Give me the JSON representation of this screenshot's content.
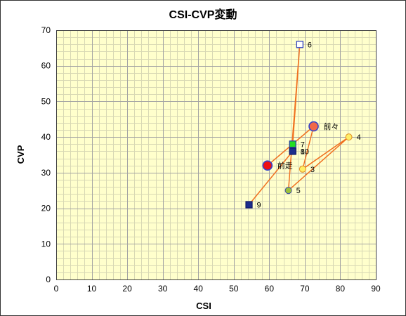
{
  "chart_data": {
    "type": "scatter",
    "connected": true,
    "title": "CSI-CVP変動",
    "xlabel": "CSI",
    "ylabel": "CVP",
    "xlim": [
      0,
      90
    ],
    "ylim": [
      0,
      70
    ],
    "xticks": [
      0,
      10,
      20,
      30,
      40,
      50,
      60,
      70,
      80,
      90
    ],
    "yticks": [
      0,
      10,
      20,
      30,
      40,
      50,
      60,
      70
    ],
    "grid": true,
    "minor_grid": true,
    "colors": {
      "plot_background": "#ffffcc",
      "major_gridline": "#a4a4a4",
      "minor_gridline": "#d8d8b4",
      "line": "#f07020"
    },
    "points": [
      {
        "label": "前走",
        "x": 59.5,
        "y": 32,
        "marker": "circle-large",
        "fill": "#ee1111",
        "stroke": "#3344cc"
      },
      {
        "label": "前々",
        "x": 72.5,
        "y": 43,
        "marker": "circle-large",
        "fill": "#f06848",
        "stroke": "#3344cc"
      },
      {
        "label": "3",
        "x": 69.4,
        "y": 31,
        "marker": "circle",
        "fill": "#ffee66",
        "stroke": "#e08a20"
      },
      {
        "label": "4",
        "x": 82.4,
        "y": 40,
        "marker": "circle",
        "fill": "#ffee66",
        "stroke": "#e08a20"
      },
      {
        "label": "5",
        "x": 65.4,
        "y": 25,
        "marker": "circle",
        "fill": "#9cc23a",
        "stroke": "#3a4aa0"
      },
      {
        "label": "6",
        "x": 68.6,
        "y": 66,
        "marker": "square",
        "fill": "#ffffff",
        "stroke": "#2233bb"
      },
      {
        "label": "7",
        "x": 66.6,
        "y": 38,
        "marker": "square",
        "fill": "#22dd22",
        "stroke": "#2233aa"
      },
      {
        "label": "8",
        "x": 66.6,
        "y": 36,
        "marker": "square",
        "fill": "#1c2c8c",
        "stroke": "#10186a"
      },
      {
        "label": "9",
        "x": 54.3,
        "y": 21,
        "marker": "square",
        "fill": "#1c2c8c",
        "stroke": "#10186a"
      },
      {
        "label": "10",
        "x": 66.6,
        "y": 36,
        "marker": "square",
        "fill": "#1c2c8c",
        "stroke": "#10186a"
      }
    ]
  }
}
